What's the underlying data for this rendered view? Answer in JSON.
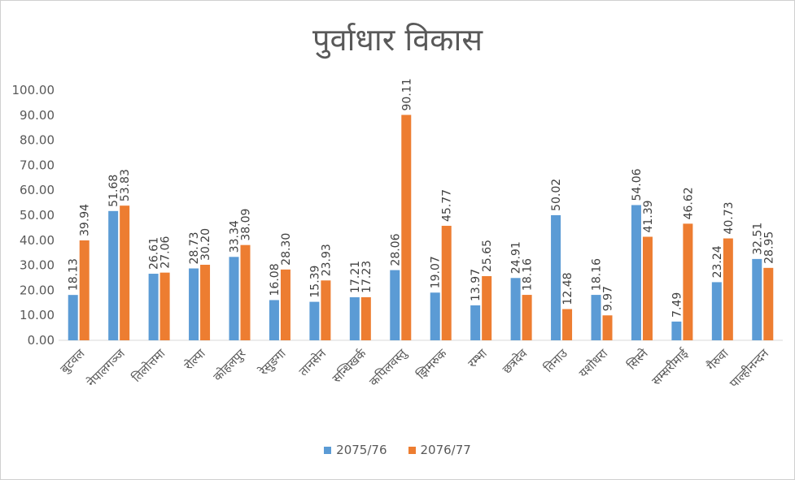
{
  "chart_data": {
    "type": "bar",
    "title": "पुर्वाधार विकास",
    "categories": [
      "बुटवल",
      "नेपालगञ्ज",
      "तिलोत्तमा",
      "रोल्पा",
      "कोहलपुर",
      "रेसुङगा",
      "तानसेन",
      "सन्धिखर्क",
      "कपिलवस्तु",
      "झिमरुक",
      "रम्भा",
      "छत्रदेव",
      "तिनाउ",
      "यशोधरा",
      "सिस्ने",
      "सम्सरीमाई",
      "गैरुवा",
      "पाल्हीनन्दन"
    ],
    "series": [
      {
        "name": "2075/76",
        "color": "#5b9bd5",
        "values": [
          18.13,
          51.68,
          26.61,
          28.73,
          33.34,
          16.08,
          15.39,
          17.21,
          28.06,
          19.07,
          13.97,
          24.91,
          50.02,
          18.16,
          54.06,
          7.49,
          23.24,
          32.51
        ]
      },
      {
        "name": "2076/77",
        "color": "#ed7d31",
        "values": [
          39.94,
          53.83,
          27.06,
          30.2,
          38.09,
          28.3,
          23.93,
          17.23,
          90.11,
          45.77,
          25.65,
          18.16,
          12.48,
          9.97,
          41.39,
          46.62,
          40.73,
          28.95
        ]
      }
    ],
    "yticks": [
      "0.00",
      "10.00",
      "20.00",
      "30.00",
      "40.00",
      "50.00",
      "60.00",
      "70.00",
      "80.00",
      "90.00",
      "100.00"
    ],
    "ylim": [
      0,
      100
    ],
    "data_labels": {
      "2075/76": [
        "18.13",
        "51.68",
        "26.61",
        "28.73",
        "33.34",
        "16.08",
        "15.39",
        "17.21",
        "28.06",
        "19.07",
        "13.97",
        "24.91",
        "50.02",
        "18.16",
        "54.06",
        "7.49",
        "23.24",
        "32.51"
      ],
      "2076/77": [
        "39.94",
        "53.83",
        "27.06",
        "30.20",
        "38.09",
        "28.30",
        "23.93",
        "17.23",
        "90.11",
        "45.77",
        "25.65",
        "18.16",
        "12.48",
        "9.97",
        "41.39",
        "46.62",
        "40.73",
        "28.95"
      ]
    },
    "grid": false,
    "legend_position": "bottom"
  }
}
